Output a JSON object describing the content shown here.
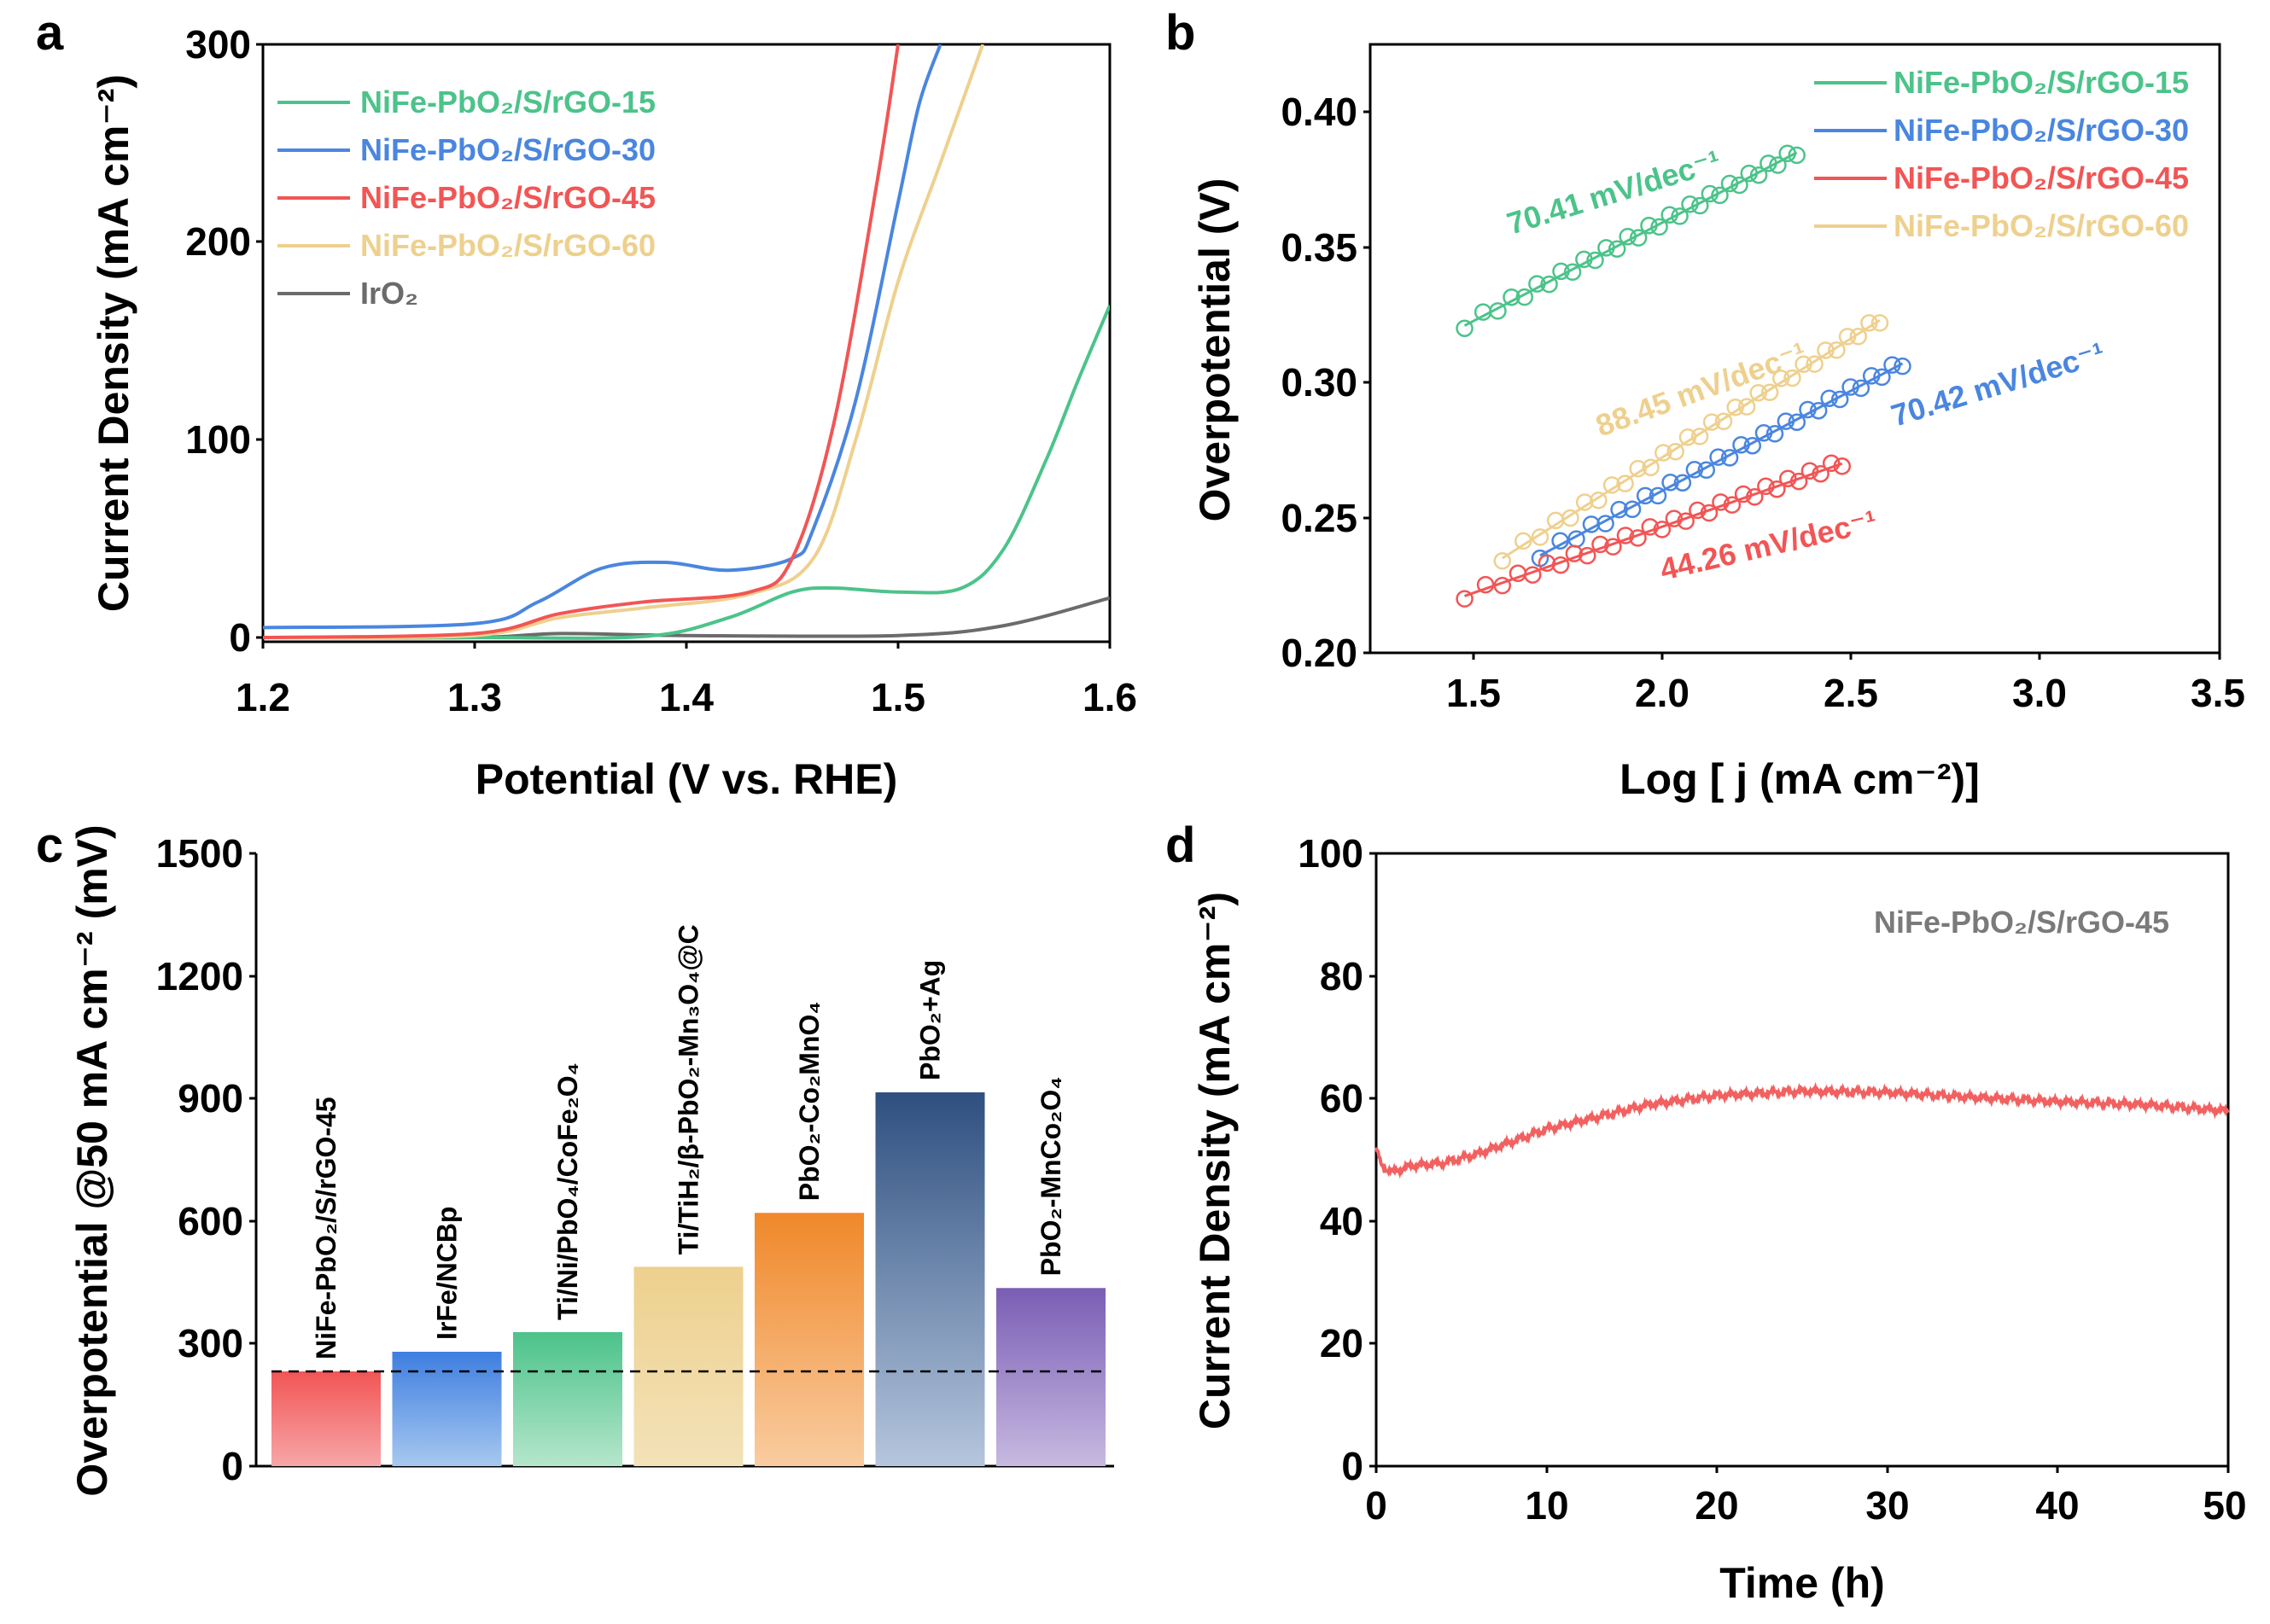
{
  "panels": {
    "a": {
      "letter": "a"
    },
    "b": {
      "letter": "b"
    },
    "c": {
      "letter": "c"
    },
    "d": {
      "letter": "d"
    }
  },
  "chart_data": [
    {
      "id": "a",
      "type": "line",
      "title": "",
      "xlabel": "Potential (V vs. RHE)",
      "ylabel": "Current Density (mA cm⁻²)",
      "xlim": [
        1.2,
        1.6
      ],
      "ylim": [
        -5,
        300
      ],
      "xticks": [
        1.2,
        1.3,
        1.4,
        1.5,
        1.6
      ],
      "yticks": [
        0,
        100,
        200,
        300
      ],
      "legend_position": "top-left",
      "series": [
        {
          "name": "NiFe-PbO₂/S/rGO-15",
          "color": "#4CC38A",
          "x": [
            1.2,
            1.3,
            1.38,
            1.42,
            1.45,
            1.47,
            1.5,
            1.53,
            1.55,
            1.57,
            1.585,
            1.6
          ],
          "y": [
            0,
            0,
            0.5,
            10,
            23,
            25,
            23,
            25,
            45,
            90,
            130,
            168
          ]
        },
        {
          "name": "NiFe-PbO₂/S/rGO-30",
          "color": "#4A86DF",
          "x": [
            1.2,
            1.3,
            1.33,
            1.36,
            1.39,
            1.42,
            1.45,
            1.46,
            1.48,
            1.5,
            1.51,
            1.52
          ],
          "y": [
            5,
            7,
            18,
            35,
            38,
            34,
            40,
            55,
            120,
            220,
            270,
            300
          ]
        },
        {
          "name": "NiFe-PbO₂/S/rGO-45",
          "color": "#F25555",
          "x": [
            1.2,
            1.3,
            1.34,
            1.38,
            1.43,
            1.45,
            1.47,
            1.49,
            1.5
          ],
          "y": [
            0,
            2,
            12,
            18,
            23,
            40,
            110,
            230,
            300
          ]
        },
        {
          "name": "NiFe-PbO₂/S/rGO-60",
          "color": "#EED08E",
          "x": [
            1.2,
            1.3,
            1.34,
            1.38,
            1.43,
            1.46,
            1.48,
            1.5,
            1.52,
            1.54
          ],
          "y": [
            0,
            1,
            10,
            15,
            22,
            40,
            100,
            180,
            240,
            300
          ]
        },
        {
          "name": "IrO₂",
          "color": "#6B6B6B",
          "x": [
            1.2,
            1.3,
            1.34,
            1.4,
            1.5,
            1.55,
            1.6
          ],
          "y": [
            0,
            0,
            2,
            1,
            1,
            6,
            20
          ]
        }
      ]
    },
    {
      "id": "b",
      "type": "scatter",
      "title": "",
      "xlabel": "Log [ j (mA cm⁻²)]",
      "ylabel": "Overpotential (V)",
      "xlim": [
        1.25,
        3.5
      ],
      "ylim": [
        0.2,
        0.425
      ],
      "xticks": [
        1.5,
        2.0,
        2.5,
        3.0,
        3.5
      ],
      "yticks": [
        0.2,
        0.25,
        0.3,
        0.35,
        0.4
      ],
      "legend_position": "top-right",
      "series": [
        {
          "name": "NiFe-PbO₂/S/rGO-15",
          "color": "#4CC38A",
          "x_range": [
            1.5,
            2.38
          ],
          "y_range": [
            0.321,
            0.385
          ],
          "fit_label": "70.41 mV/dec⁻¹"
        },
        {
          "name": "NiFe-PbO₂/S/rGO-30",
          "color": "#4A86DF",
          "x_range": [
            1.7,
            2.66
          ],
          "y_range": [
            0.236,
            0.307
          ],
          "fit_label": "70.42 mV/dec⁻¹"
        },
        {
          "name": "NiFe-PbO₂/S/rGO-45",
          "color": "#F25555",
          "x_range": [
            1.5,
            2.5
          ],
          "y_range": [
            0.221,
            0.27
          ],
          "fit_label": "44.26 mV/dec⁻¹"
        },
        {
          "name": "NiFe-PbO₂/S/rGO-60",
          "color": "#EED08E",
          "x_range": [
            1.6,
            2.6
          ],
          "y_range": [
            0.235,
            0.323
          ],
          "fit_label": "88.45 mV/dec⁻¹"
        }
      ]
    },
    {
      "id": "c",
      "type": "bar",
      "title": "",
      "xlabel": "",
      "ylabel": "Overpotential @50 mA cm⁻² (mV)",
      "ylim": [
        0,
        1500
      ],
      "yticks": [
        0,
        300,
        600,
        900,
        1200,
        1500
      ],
      "reference_line": 232,
      "categories": [
        "NiFe-PbO₂/S/rGO-45",
        "IrFe/NCBp",
        "Ti/Ni/PbO₄/CoFe₂O₄",
        "Ti/TiH₂/β-PbO₂-Mn₃O₄@C",
        "PbO₂-Co₂MnO₄",
        "PbO₂+Ag",
        "PbO₂-MnCo₂O₄"
      ],
      "values": [
        232,
        280,
        328,
        488,
        620,
        915,
        436
      ],
      "colors": [
        [
          "#F25555",
          "#F7A6A8"
        ],
        [
          "#3E7EE0",
          "#A7C8F0"
        ],
        [
          "#4CC38A",
          "#B5E6CC"
        ],
        [
          "#EED08E",
          "#F3E2B8"
        ],
        [
          "#F0882A",
          "#F9CCA0"
        ],
        [
          "#2E4F80",
          "#B5C6DD"
        ],
        [
          "#7A5DB5",
          "#C7B9E0"
        ]
      ]
    },
    {
      "id": "d",
      "type": "line",
      "title": "",
      "xlabel": "Time (h)",
      "ylabel": "Current Density (mA cm⁻²)",
      "xlim": [
        0,
        50
      ],
      "ylim": [
        0,
        100
      ],
      "xticks": [
        0,
        10,
        20,
        30,
        40,
        50
      ],
      "yticks": [
        0,
        20,
        40,
        60,
        80,
        100
      ],
      "annotation": "NiFe-PbO₂/S/rGO-45",
      "series": [
        {
          "name": "NiFe-PbO₂/S/rGO-45",
          "color": "#F26060",
          "x": [
            0,
            0.3,
            1,
            2,
            4,
            6,
            8,
            10,
            13,
            16,
            20,
            25,
            30,
            35,
            40,
            45,
            50
          ],
          "y": [
            52,
            49,
            48,
            49,
            49.5,
            51,
            53,
            55,
            57,
            59,
            60.5,
            61.2,
            61,
            60.2,
            59.5,
            59,
            58
          ]
        }
      ]
    }
  ]
}
